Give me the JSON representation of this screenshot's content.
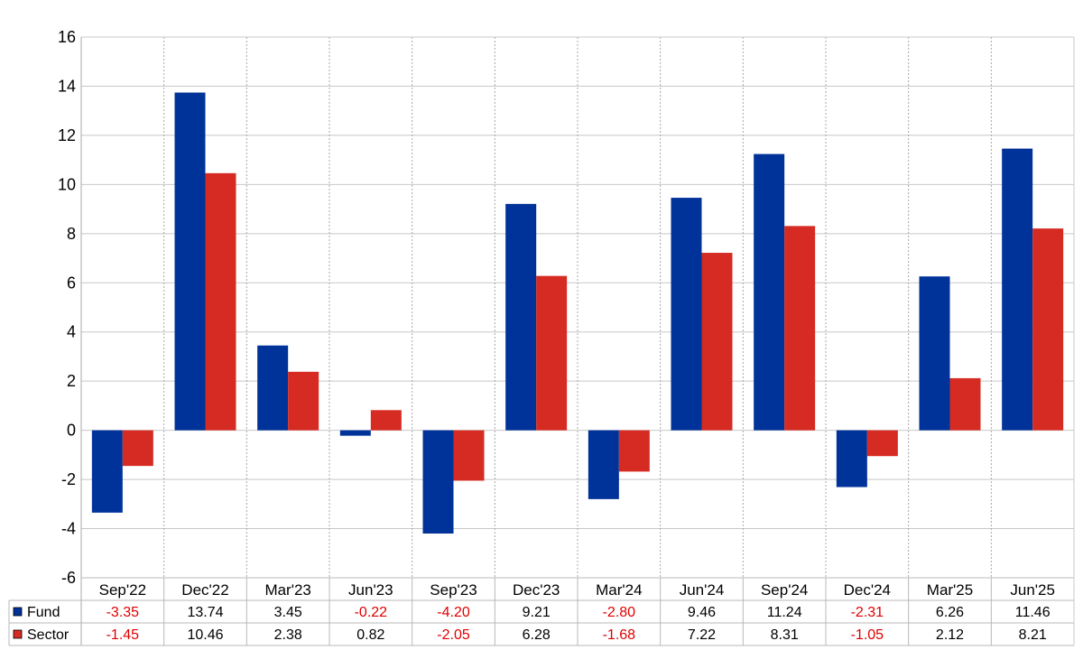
{
  "chart_data": {
    "type": "bar",
    "categories": [
      "Sep'22",
      "Dec'22",
      "Mar'23",
      "Jun'23",
      "Sep'23",
      "Dec'23",
      "Mar'24",
      "Jun'24",
      "Sep'24",
      "Dec'24",
      "Mar'25",
      "Jun'25"
    ],
    "series": [
      {
        "name": "Fund",
        "color": "#003399",
        "values": [
          -3.35,
          13.74,
          3.45,
          -0.22,
          -4.2,
          9.21,
          -2.8,
          9.46,
          11.24,
          -2.31,
          6.26,
          11.46
        ],
        "labels": [
          "-3.35",
          "13.74",
          "3.45",
          "-0.22",
          "-4.20",
          "9.21",
          "-2.80",
          "9.46",
          "11.24",
          "-2.31",
          "6.26",
          "11.46"
        ]
      },
      {
        "name": "Sector",
        "color": "#d62b22",
        "values": [
          -1.45,
          10.46,
          2.38,
          0.82,
          -2.05,
          6.28,
          -1.68,
          7.22,
          8.31,
          -1.05,
          2.12,
          8.21
        ],
        "labels": [
          "-1.45",
          "10.46",
          "2.38",
          "0.82",
          "-2.05",
          "6.28",
          "-1.68",
          "7.22",
          "8.31",
          "-1.05",
          "2.12",
          "8.21"
        ]
      }
    ],
    "ylim": [
      -6,
      16
    ],
    "yticks": [
      "-6",
      "-4",
      "-2",
      "0",
      "2",
      "4",
      "6",
      "8",
      "10",
      "12",
      "14",
      "16"
    ],
    "title": "",
    "xlabel": "",
    "ylabel": "",
    "grid": true,
    "legend": "bottom-table",
    "negative_value_color": "#e00000",
    "positive_value_color": "#000000"
  }
}
